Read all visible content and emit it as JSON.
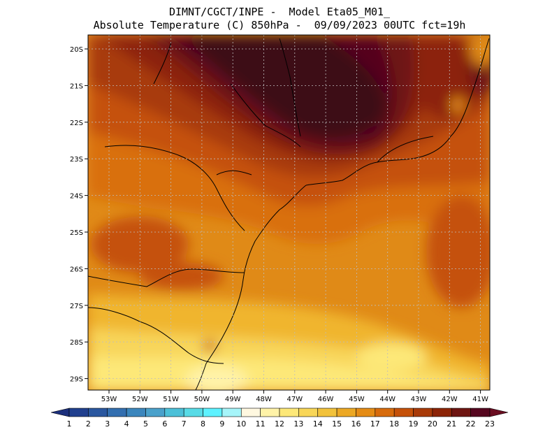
{
  "header": {
    "line1": "DIMNT/CGCT/INPE -  Model Eta05_M01_",
    "line2": "Absolute Temperature (C) 850hPa -  09/09/2023 00UTC fct=19h"
  },
  "map": {
    "lat_labels": [
      "20S",
      "21S",
      "22S",
      "23S",
      "24S",
      "25S",
      "26S",
      "27S",
      "28S",
      "29S"
    ],
    "lon_labels": [
      "53W",
      "52W",
      "51W",
      "50W",
      "49W",
      "48W",
      "47W",
      "46W",
      "45W",
      "44W",
      "43W",
      "42W",
      "41W"
    ]
  },
  "colorbar": {
    "labels": [
      "1",
      "2",
      "3",
      "4",
      "5",
      "6",
      "7",
      "8",
      "9",
      "10",
      "11",
      "12",
      "13",
      "14",
      "15",
      "16",
      "17",
      "18",
      "19",
      "20",
      "21",
      "22",
      "23"
    ],
    "colors": [
      "#1b2f7c",
      "#203f8e",
      "#2a579f",
      "#336fb0",
      "#3b86bd",
      "#4aa1cb",
      "#4cc0d8",
      "#58dbe6",
      "#5ef2ff",
      "#a6f5fa",
      "#fff8e0",
      "#fff3a8",
      "#fde878",
      "#f8d658",
      "#f2c23b",
      "#eca824",
      "#e58c15",
      "#d76b0c",
      "#c55109",
      "#a83a08",
      "#8c2407",
      "#6e1512",
      "#55061f",
      "#6a0d20"
    ]
  }
}
